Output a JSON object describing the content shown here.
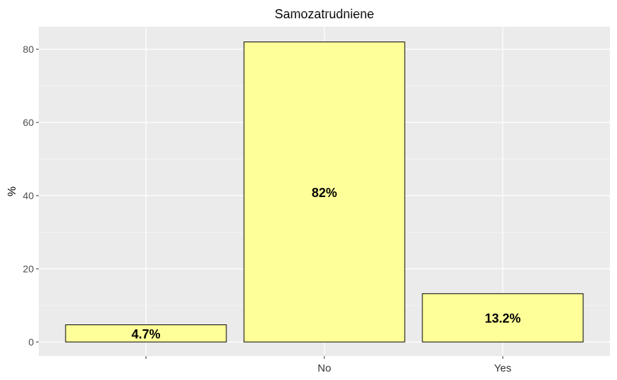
{
  "chart_data": {
    "type": "bar",
    "title": "Samozatrudniene",
    "xlabel": "",
    "ylabel": "%",
    "categories": [
      "",
      "No",
      "Yes"
    ],
    "values": [
      4.7,
      82,
      13.2
    ],
    "data_labels": [
      "4.7%",
      "82%",
      "13.2%"
    ],
    "ylim": [
      0,
      85.5
    ],
    "yticks": [
      0,
      20,
      40,
      60,
      80
    ],
    "grid": true,
    "colors": {
      "bar_fill": "#ffff99",
      "bar_stroke": "#000000",
      "panel_bg": "#ebebeb",
      "grid": "#ffffff"
    }
  }
}
